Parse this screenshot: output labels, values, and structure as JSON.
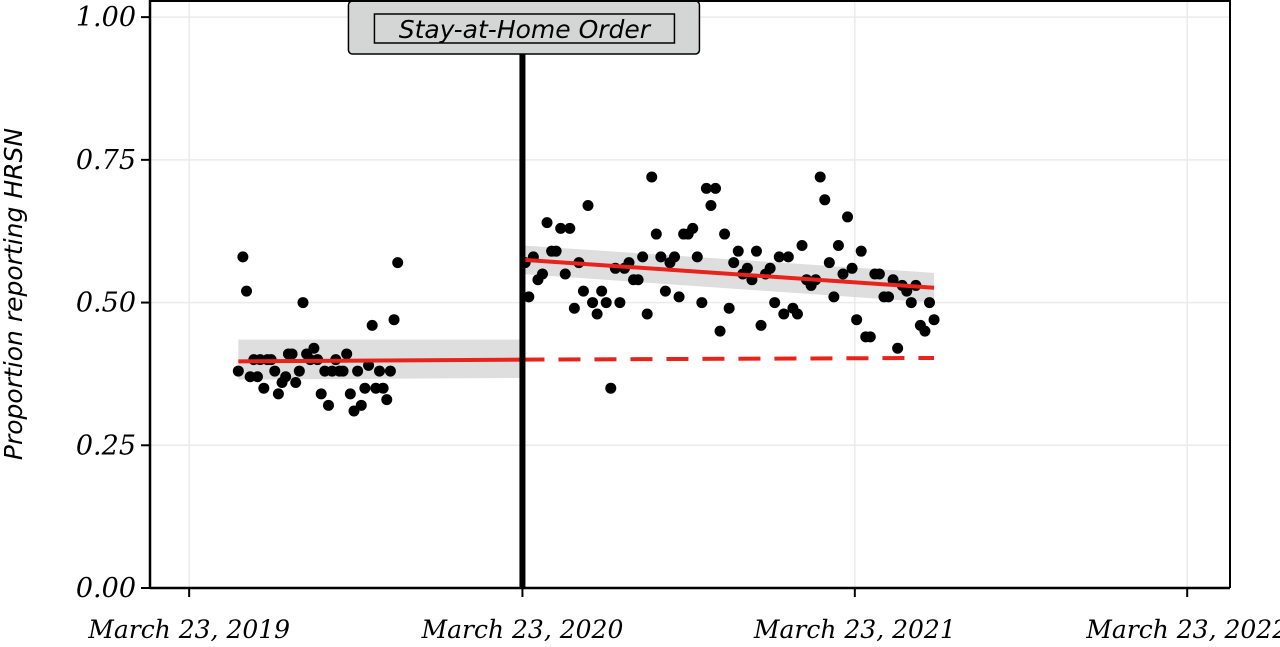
{
  "chart_data": {
    "type": "scatter",
    "title": "",
    "xlabel": "",
    "ylabel": "Proportion reporting HRSN",
    "ylim": [
      0,
      1.03
    ],
    "xlim": [
      "2019-02-08",
      "2022-05-09"
    ],
    "grid": true,
    "x_ticks": [
      {
        "date": "2019-03-23",
        "label": "March 23, 2019"
      },
      {
        "date": "2020-03-23",
        "label": "March 23, 2020"
      },
      {
        "date": "2021-03-23",
        "label": "March 23, 2021"
      },
      {
        "date": "2022-03-23",
        "label": "March 23, 2022"
      }
    ],
    "y_ticks": [
      {
        "value": 0,
        "label": "0.00"
      },
      {
        "value": 0.25,
        "label": "0.25"
      },
      {
        "value": 0.5,
        "label": "0.50"
      },
      {
        "value": 0.75,
        "label": "0.75"
      },
      {
        "value": 1.0,
        "label": "1.00"
      }
    ],
    "event": {
      "date": "2020-03-23",
      "label": "Stay-at-Home Order",
      "color": "#000000"
    },
    "points": [
      {
        "x": "2019-05-16",
        "y": 0.38
      },
      {
        "x": "2019-05-21",
        "y": 0.58
      },
      {
        "x": "2019-05-25",
        "y": 0.52
      },
      {
        "x": "2019-05-29",
        "y": 0.37
      },
      {
        "x": "2019-06-02",
        "y": 0.4
      },
      {
        "x": "2019-06-06",
        "y": 0.37
      },
      {
        "x": "2019-06-09",
        "y": 0.4
      },
      {
        "x": "2019-06-13",
        "y": 0.35
      },
      {
        "x": "2019-06-17",
        "y": 0.4
      },
      {
        "x": "2019-06-21",
        "y": 0.4
      },
      {
        "x": "2019-06-25",
        "y": 0.38
      },
      {
        "x": "2019-06-29",
        "y": 0.34
      },
      {
        "x": "2019-07-03",
        "y": 0.36
      },
      {
        "x": "2019-07-07",
        "y": 0.37
      },
      {
        "x": "2019-07-10",
        "y": 0.41
      },
      {
        "x": "2019-07-14",
        "y": 0.41
      },
      {
        "x": "2019-07-18",
        "y": 0.36
      },
      {
        "x": "2019-07-22",
        "y": 0.38
      },
      {
        "x": "2019-07-26",
        "y": 0.5
      },
      {
        "x": "2019-07-30",
        "y": 0.41
      },
      {
        "x": "2019-08-03",
        "y": 0.4
      },
      {
        "x": "2019-08-07",
        "y": 0.42
      },
      {
        "x": "2019-08-11",
        "y": 0.4
      },
      {
        "x": "2019-08-15",
        "y": 0.34
      },
      {
        "x": "2019-08-19",
        "y": 0.38
      },
      {
        "x": "2019-08-23",
        "y": 0.32
      },
      {
        "x": "2019-08-27",
        "y": 0.38
      },
      {
        "x": "2019-08-31",
        "y": 0.4
      },
      {
        "x": "2019-09-04",
        "y": 0.38
      },
      {
        "x": "2019-09-08",
        "y": 0.38
      },
      {
        "x": "2019-09-12",
        "y": 0.41
      },
      {
        "x": "2019-09-16",
        "y": 0.34
      },
      {
        "x": "2019-09-20",
        "y": 0.31
      },
      {
        "x": "2019-09-24",
        "y": 0.38
      },
      {
        "x": "2019-09-28",
        "y": 0.32
      },
      {
        "x": "2019-10-02",
        "y": 0.35
      },
      {
        "x": "2019-10-06",
        "y": 0.39
      },
      {
        "x": "2019-10-10",
        "y": 0.46
      },
      {
        "x": "2019-10-14",
        "y": 0.35
      },
      {
        "x": "2019-10-18",
        "y": 0.38
      },
      {
        "x": "2019-10-22",
        "y": 0.35
      },
      {
        "x": "2019-10-26",
        "y": 0.33
      },
      {
        "x": "2019-10-30",
        "y": 0.38
      },
      {
        "x": "2019-11-03",
        "y": 0.47
      },
      {
        "x": "2019-11-07",
        "y": 0.57
      },
      {
        "x": "2020-03-26",
        "y": 0.57
      },
      {
        "x": "2020-03-30",
        "y": 0.51
      },
      {
        "x": "2020-04-04",
        "y": 0.58
      },
      {
        "x": "2020-04-09",
        "y": 0.54
      },
      {
        "x": "2020-04-14",
        "y": 0.55
      },
      {
        "x": "2020-04-19",
        "y": 0.64
      },
      {
        "x": "2020-04-24",
        "y": 0.59
      },
      {
        "x": "2020-04-29",
        "y": 0.59
      },
      {
        "x": "2020-05-04",
        "y": 0.63
      },
      {
        "x": "2020-05-09",
        "y": 0.55
      },
      {
        "x": "2020-05-14",
        "y": 0.63
      },
      {
        "x": "2020-05-19",
        "y": 0.49
      },
      {
        "x": "2020-05-24",
        "y": 0.57
      },
      {
        "x": "2020-05-29",
        "y": 0.52
      },
      {
        "x": "2020-06-03",
        "y": 0.67
      },
      {
        "x": "2020-06-08",
        "y": 0.5
      },
      {
        "x": "2020-06-13",
        "y": 0.48
      },
      {
        "x": "2020-06-18",
        "y": 0.52
      },
      {
        "x": "2020-06-23",
        "y": 0.5
      },
      {
        "x": "2020-06-28",
        "y": 0.35
      },
      {
        "x": "2020-07-03",
        "y": 0.56
      },
      {
        "x": "2020-07-08",
        "y": 0.5
      },
      {
        "x": "2020-07-13",
        "y": 0.56
      },
      {
        "x": "2020-07-18",
        "y": 0.57
      },
      {
        "x": "2020-07-23",
        "y": 0.54
      },
      {
        "x": "2020-07-28",
        "y": 0.54
      },
      {
        "x": "2020-08-02",
        "y": 0.58
      },
      {
        "x": "2020-08-07",
        "y": 0.48
      },
      {
        "x": "2020-08-12",
        "y": 0.72
      },
      {
        "x": "2020-08-17",
        "y": 0.62
      },
      {
        "x": "2020-08-22",
        "y": 0.58
      },
      {
        "x": "2020-08-27",
        "y": 0.52
      },
      {
        "x": "2020-09-01",
        "y": 0.57
      },
      {
        "x": "2020-09-06",
        "y": 0.58
      },
      {
        "x": "2020-09-11",
        "y": 0.51
      },
      {
        "x": "2020-09-16",
        "y": 0.62
      },
      {
        "x": "2020-09-21",
        "y": 0.62
      },
      {
        "x": "2020-09-26",
        "y": 0.63
      },
      {
        "x": "2020-10-01",
        "y": 0.58
      },
      {
        "x": "2020-10-06",
        "y": 0.5
      },
      {
        "x": "2020-10-11",
        "y": 0.7
      },
      {
        "x": "2020-10-16",
        "y": 0.67
      },
      {
        "x": "2020-10-21",
        "y": 0.7
      },
      {
        "x": "2020-10-26",
        "y": 0.45
      },
      {
        "x": "2020-10-31",
        "y": 0.62
      },
      {
        "x": "2020-11-05",
        "y": 0.49
      },
      {
        "x": "2020-11-10",
        "y": 0.57
      },
      {
        "x": "2020-11-15",
        "y": 0.59
      },
      {
        "x": "2020-11-20",
        "y": 0.55
      },
      {
        "x": "2020-11-25",
        "y": 0.56
      },
      {
        "x": "2020-11-30",
        "y": 0.54
      },
      {
        "x": "2020-12-05",
        "y": 0.59
      },
      {
        "x": "2020-12-10",
        "y": 0.46
      },
      {
        "x": "2020-12-15",
        "y": 0.55
      },
      {
        "x": "2020-12-20",
        "y": 0.56
      },
      {
        "x": "2020-12-25",
        "y": 0.5
      },
      {
        "x": "2020-12-30",
        "y": 0.58
      },
      {
        "x": "2021-01-04",
        "y": 0.48
      },
      {
        "x": "2021-01-09",
        "y": 0.58
      },
      {
        "x": "2021-01-14",
        "y": 0.49
      },
      {
        "x": "2021-01-19",
        "y": 0.48
      },
      {
        "x": "2021-01-24",
        "y": 0.6
      },
      {
        "x": "2021-01-29",
        "y": 0.54
      },
      {
        "x": "2021-02-03",
        "y": 0.53
      },
      {
        "x": "2021-02-08",
        "y": 0.54
      },
      {
        "x": "2021-02-13",
        "y": 0.72
      },
      {
        "x": "2021-02-18",
        "y": 0.68
      },
      {
        "x": "2021-02-23",
        "y": 0.57
      },
      {
        "x": "2021-02-28",
        "y": 0.51
      },
      {
        "x": "2021-03-05",
        "y": 0.6
      },
      {
        "x": "2021-03-10",
        "y": 0.55
      },
      {
        "x": "2021-03-15",
        "y": 0.65
      },
      {
        "x": "2021-03-20",
        "y": 0.56
      },
      {
        "x": "2021-03-25",
        "y": 0.47
      },
      {
        "x": "2021-03-30",
        "y": 0.59
      },
      {
        "x": "2021-04-04",
        "y": 0.44
      },
      {
        "x": "2021-04-09",
        "y": 0.44
      },
      {
        "x": "2021-04-14",
        "y": 0.55
      },
      {
        "x": "2021-04-19",
        "y": 0.55
      },
      {
        "x": "2021-04-24",
        "y": 0.51
      },
      {
        "x": "2021-04-29",
        "y": 0.51
      },
      {
        "x": "2021-05-04",
        "y": 0.54
      },
      {
        "x": "2021-05-09",
        "y": 0.42
      },
      {
        "x": "2021-05-14",
        "y": 0.53
      },
      {
        "x": "2021-05-19",
        "y": 0.52
      },
      {
        "x": "2021-05-24",
        "y": 0.5
      },
      {
        "x": "2021-05-29",
        "y": 0.53
      },
      {
        "x": "2021-06-03",
        "y": 0.46
      },
      {
        "x": "2021-06-08",
        "y": 0.45
      },
      {
        "x": "2021-06-13",
        "y": 0.5
      },
      {
        "x": "2021-06-18",
        "y": 0.47
      }
    ],
    "fit_lines": [
      {
        "segment": "pre",
        "color": "#e8231c",
        "style": "solid",
        "x": [
          "2019-05-16",
          "2020-03-23"
        ],
        "y": [
          0.397,
          0.4
        ],
        "ci_low": [
          0.365,
          0.368
        ],
        "ci_high": [
          0.435,
          0.435
        ]
      },
      {
        "segment": "post",
        "color": "#e8231c",
        "style": "solid",
        "x": [
          "2020-03-23",
          "2021-06-18"
        ],
        "y": [
          0.575,
          0.526
        ],
        "ci_low": [
          0.55,
          0.5
        ],
        "ci_high": [
          0.6,
          0.552
        ]
      },
      {
        "segment": "counterfactual",
        "color": "#e8231c",
        "style": "dashed",
        "x": [
          "2020-03-23",
          "2021-06-18"
        ],
        "y": [
          0.4,
          0.403
        ]
      }
    ],
    "colors": {
      "points": "#000000",
      "fit": "#e8231c",
      "ci_band": "#d3d3d3",
      "grid": "#ebebeb",
      "annotation_fill": "#d4d6d6"
    }
  }
}
